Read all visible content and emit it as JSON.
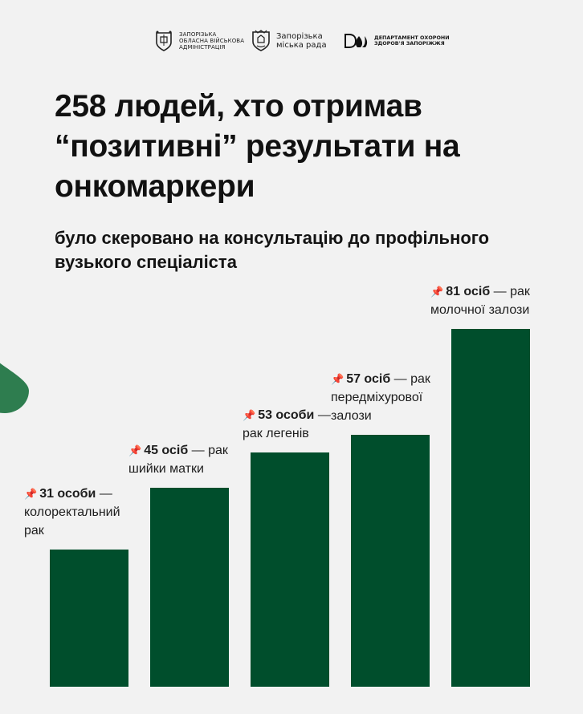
{
  "logos": [
    {
      "name": "oblast-admin",
      "lines": [
        "ЗАПОРІЗЬКА",
        "ОБЛАСНА ВІЙСЬКОВА",
        "АДМІНІСТРАЦІЯ"
      ]
    },
    {
      "name": "city-council",
      "lines": [
        "Запорізька",
        "міська рада"
      ]
    },
    {
      "name": "health-dept",
      "lines": [
        "ДЕПАРТАМЕНТ ОХОРОНИ",
        "ЗДОРОВ'Я ЗАПОРІЖЖЯ"
      ]
    }
  ],
  "title": "258 людей, хто отримав “позитивні” результати на онкомаркери",
  "subtitle": "було скеровано на консультацію до профільного вузького спеціаліста",
  "colors": {
    "bar": "#004e2c",
    "background": "#f2f2f2",
    "accent_drop": "#2e7d4f"
  },
  "chart_data": {
    "type": "bar",
    "categories": [
      "колоректальний рак",
      "рак шийки матки",
      "рак легенів",
      "рак передміхурової залози",
      "рак молочної залози"
    ],
    "values": [
      31,
      45,
      53,
      57,
      81
    ],
    "ylim": [
      0,
      81
    ],
    "grid": false,
    "labels": [
      {
        "pin": "📌",
        "bold": "31 особи",
        "rest": " —",
        "lines": [
          "колоректальний",
          "рак"
        ]
      },
      {
        "pin": "📌",
        "bold": "45 осіб",
        "rest": " — рак",
        "lines": [
          "шийки матки"
        ]
      },
      {
        "pin": "📌",
        "bold": "53 особи",
        "rest": " —",
        "lines": [
          "рак легенів"
        ]
      },
      {
        "pin": "📌",
        "bold": "57 осіб",
        "rest": " — рак",
        "lines": [
          "передміхурової",
          "залози"
        ]
      },
      {
        "pin": "📌",
        "bold": "81 осіб",
        "rest": " — рак",
        "lines": [
          "молочної залози"
        ]
      }
    ]
  }
}
